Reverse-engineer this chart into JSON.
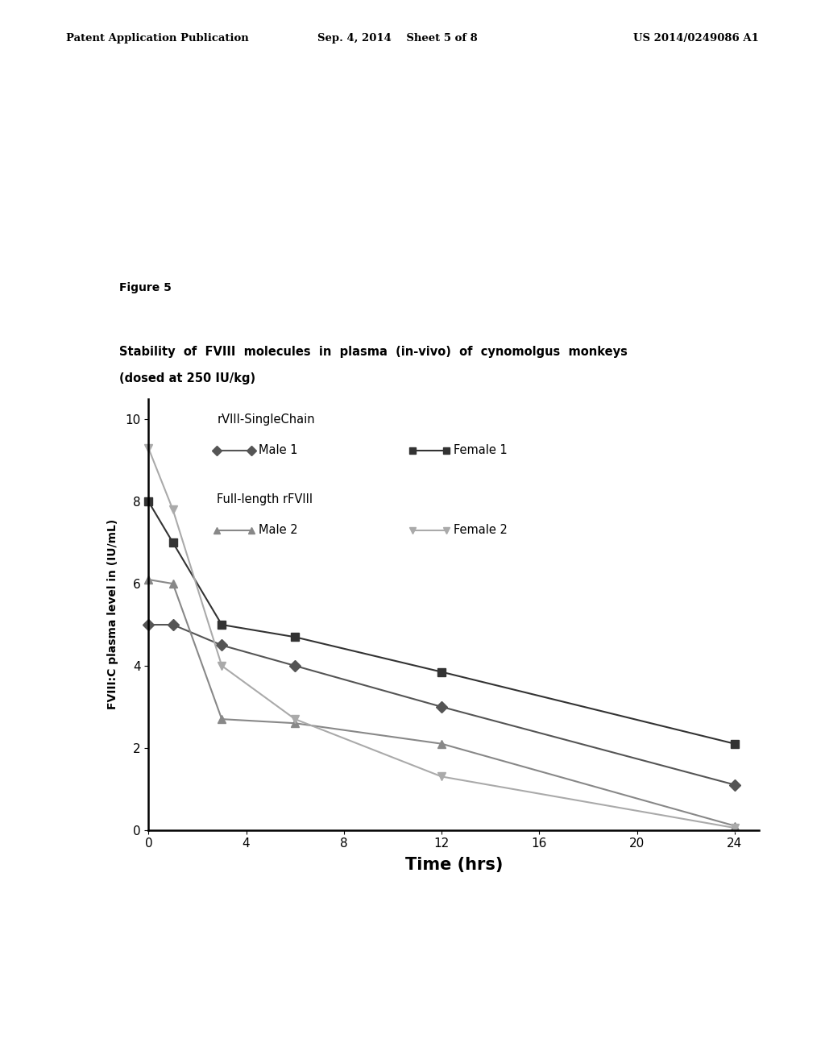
{
  "header_left": "Patent Application Publication",
  "header_center": "Sep. 4, 2014    Sheet 5 of 8",
  "header_right": "US 2014/0249086 A1",
  "figure_label": "Figure 5",
  "chart_title_line1": "Stability  of  FVIII  molecules  in  plasma  (in-vivo)  of  cynomolgus  monkeys",
  "chart_title_line2": "(dosed at 250 IU/kg)",
  "xlabel": "Time (hrs)",
  "ylabel": "FVIII:C plasma level in (IU/mL)",
  "xlim": [
    0,
    25
  ],
  "ylim": [
    0,
    10.5
  ],
  "xticks": [
    0,
    4,
    8,
    12,
    16,
    20,
    24
  ],
  "yticks": [
    0,
    2,
    4,
    6,
    8,
    10
  ],
  "legend_group1": "rVIII-SingleChain",
  "legend_group2": "Full-length rFVIII",
  "series": {
    "male1": {
      "label": "Male 1",
      "x": [
        0,
        1,
        3,
        6,
        12,
        24
      ],
      "y": [
        5.0,
        5.0,
        4.5,
        4.0,
        3.0,
        1.1
      ],
      "color": "#555555",
      "marker": "D",
      "markersize": 7,
      "linewidth": 1.5
    },
    "female1": {
      "label": "Female 1",
      "x": [
        0,
        1,
        3,
        6,
        12,
        24
      ],
      "y": [
        8.0,
        7.0,
        5.0,
        4.7,
        3.85,
        2.1
      ],
      "color": "#333333",
      "marker": "s",
      "markersize": 7,
      "linewidth": 1.5
    },
    "male2": {
      "label": "Male 2",
      "x": [
        0,
        1,
        3,
        6,
        12,
        24
      ],
      "y": [
        6.1,
        6.0,
        2.7,
        2.6,
        2.1,
        0.1
      ],
      "color": "#888888",
      "marker": "^",
      "markersize": 7,
      "linewidth": 1.5
    },
    "female2": {
      "label": "Female 2",
      "x": [
        0,
        1,
        3,
        6,
        12,
        24
      ],
      "y": [
        9.3,
        7.8,
        4.0,
        2.7,
        1.3,
        0.05
      ],
      "color": "#aaaaaa",
      "marker": "v",
      "markersize": 7,
      "linewidth": 1.5
    }
  },
  "background_color": "#ffffff"
}
